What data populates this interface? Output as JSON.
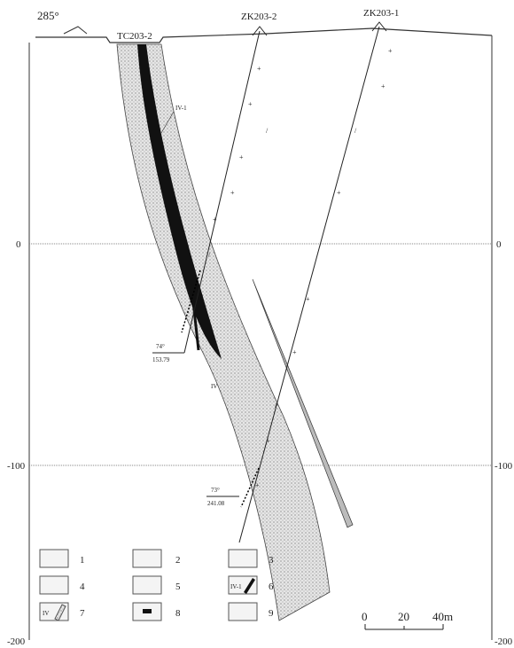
{
  "header": {
    "azimuth": "285°",
    "trench": "TC203-2",
    "holes": [
      "ZK203-2",
      "ZK203-1"
    ]
  },
  "orebodies": {
    "main": "IV-1",
    "zone": "IV"
  },
  "elevations": {
    "left": [
      "0",
      "-100",
      "-200"
    ],
    "right": [
      "0",
      "-100",
      "-200"
    ]
  },
  "hole_ends": [
    {
      "angle": "74°",
      "depth": "153.79"
    },
    {
      "angle": "73°",
      "depth": "241.08"
    }
  ],
  "legend": [
    {
      "number": "1"
    },
    {
      "number": "2"
    },
    {
      "number": "3"
    },
    {
      "number": "4"
    },
    {
      "number": "5"
    },
    {
      "number": "6",
      "label": "IV-1"
    },
    {
      "number": "7",
      "label": "IV"
    },
    {
      "number": "8"
    },
    {
      "number": "9"
    }
  ],
  "scale": {
    "labels": [
      "0",
      "20",
      "40m"
    ]
  }
}
